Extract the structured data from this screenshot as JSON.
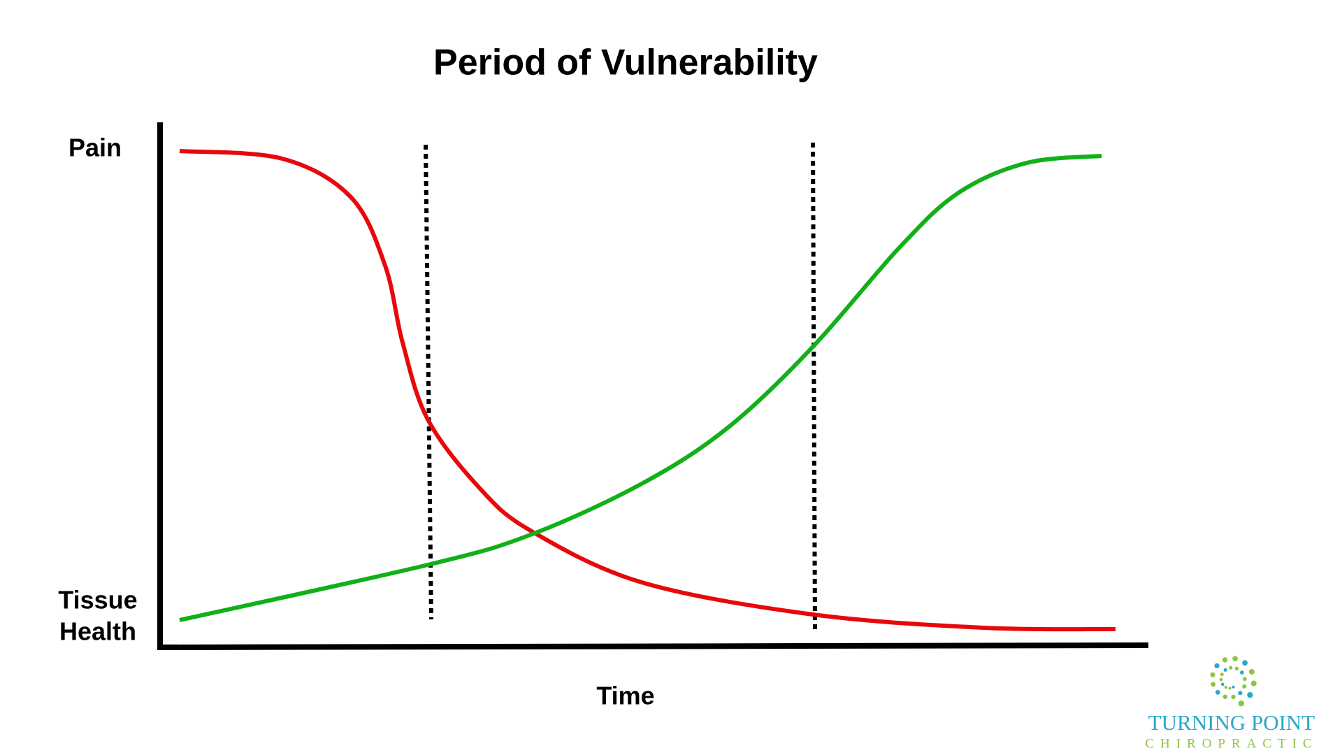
{
  "title": "Period of Vulnerability",
  "y_axis_labels": {
    "top": "Pain",
    "bottom": [
      "Tissue",
      "Health"
    ]
  },
  "x_axis_label": "Time",
  "logo": {
    "name": "TURNING POINT",
    "tagline": "CHIROPRACTIC"
  }
}
